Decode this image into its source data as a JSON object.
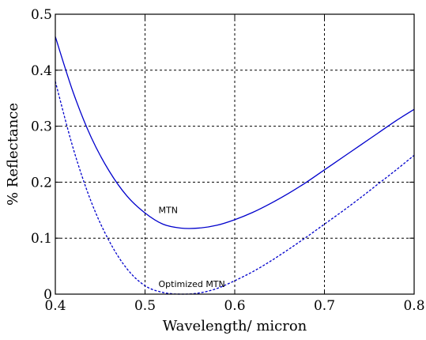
{
  "chart_data": {
    "type": "line",
    "title": "",
    "xlabel": "Wavelength/ micron",
    "ylabel": "% Reflectance",
    "xlim": [
      0.4,
      0.8
    ],
    "ylim": [
      0,
      0.5
    ],
    "xticks": [
      "0.4",
      "0.5",
      "0.6",
      "0.7",
      "0.8"
    ],
    "yticks": [
      "0",
      "0.1",
      "0.2",
      "0.3",
      "0.4",
      "0.5"
    ],
    "grid": true,
    "series": [
      {
        "name": "MTN",
        "color": "#0000cc",
        "style": "solid",
        "x": [
          0.4,
          0.42,
          0.44,
          0.46,
          0.48,
          0.5,
          0.52,
          0.54,
          0.56,
          0.58,
          0.6,
          0.62,
          0.64,
          0.66,
          0.68,
          0.7,
          0.72,
          0.74,
          0.76,
          0.78,
          0.8
        ],
        "y": [
          0.46,
          0.36,
          0.28,
          0.22,
          0.175,
          0.145,
          0.125,
          0.118,
          0.118,
          0.123,
          0.133,
          0.146,
          0.162,
          0.18,
          0.2,
          0.222,
          0.244,
          0.266,
          0.288,
          0.31,
          0.33
        ]
      },
      {
        "name": "Optimized MTN",
        "color": "#0000cc",
        "style": "dashed",
        "x": [
          0.4,
          0.42,
          0.44,
          0.46,
          0.48,
          0.5,
          0.52,
          0.54,
          0.56,
          0.58,
          0.6,
          0.62,
          0.64,
          0.66,
          0.68,
          0.7,
          0.72,
          0.74,
          0.76,
          0.78,
          0.8
        ],
        "y": [
          0.38,
          0.26,
          0.165,
          0.095,
          0.045,
          0.015,
          0.003,
          0.0,
          0.002,
          0.01,
          0.024,
          0.04,
          0.059,
          0.08,
          0.102,
          0.125,
          0.148,
          0.172,
          0.197,
          0.222,
          0.248
        ]
      }
    ],
    "annotations": [
      {
        "text": "MTN",
        "x": 0.515,
        "y": 0.145
      },
      {
        "text": "Optimized MTN",
        "x": 0.515,
        "y": 0.013
      }
    ]
  }
}
